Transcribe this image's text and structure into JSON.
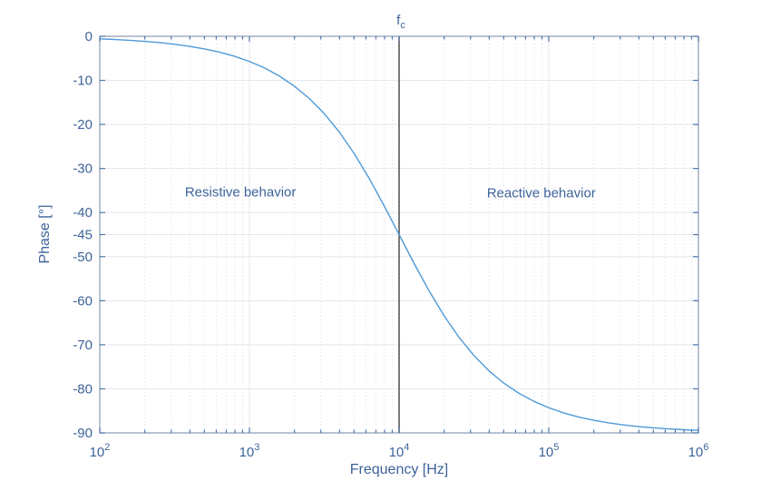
{
  "chart_data": {
    "type": "line",
    "title": "",
    "xlabel": "Frequency [Hz]",
    "ylabel": "Phase [°]",
    "x_scale": "log",
    "x_range_log10": [
      2,
      6
    ],
    "ylim": [
      -90,
      0
    ],
    "x_tick_exponents": [
      2,
      3,
      4,
      5,
      6
    ],
    "x_tick_base": "10",
    "y_ticks": [
      0,
      -10,
      -20,
      -30,
      -40,
      -45,
      -50,
      -60,
      -70,
      -80,
      -90
    ],
    "grid": {
      "major": true,
      "x_minor_dotted": true,
      "legend": "none"
    },
    "series": [
      {
        "name": "phase-response",
        "color": "#4f9ad7",
        "points_log10f_deg": [
          [
            2.0,
            -0.57
          ],
          [
            2.1,
            -0.72
          ],
          [
            2.2,
            -0.91
          ],
          [
            2.3,
            -1.14
          ],
          [
            2.4,
            -1.44
          ],
          [
            2.5,
            -1.81
          ],
          [
            2.6,
            -2.28
          ],
          [
            2.7,
            -2.86
          ],
          [
            2.8,
            -3.6
          ],
          [
            2.9,
            -4.52
          ],
          [
            3.0,
            -5.71
          ],
          [
            3.1,
            -7.16
          ],
          [
            3.2,
            -9.01
          ],
          [
            3.3,
            -11.31
          ],
          [
            3.4,
            -14.11
          ],
          [
            3.5,
            -17.55
          ],
          [
            3.6,
            -21.7
          ],
          [
            3.7,
            -26.62
          ],
          [
            3.8,
            -32.25
          ],
          [
            3.9,
            -38.46
          ],
          [
            4.0,
            -45.0
          ],
          [
            4.1,
            -51.54
          ],
          [
            4.2,
            -57.75
          ],
          [
            4.3,
            -63.38
          ],
          [
            4.4,
            -68.3
          ],
          [
            4.5,
            -72.45
          ],
          [
            4.6,
            -75.9
          ],
          [
            4.7,
            -78.72
          ],
          [
            4.8,
            -80.99
          ],
          [
            4.9,
            -82.83
          ],
          [
            5.0,
            -84.29
          ],
          [
            5.1,
            -85.48
          ],
          [
            5.2,
            -86.4
          ],
          [
            5.3,
            -87.14
          ],
          [
            5.4,
            -87.72
          ],
          [
            5.5,
            -88.19
          ],
          [
            5.6,
            -88.56
          ],
          [
            5.7,
            -88.86
          ],
          [
            5.8,
            -89.09
          ],
          [
            5.9,
            -89.28
          ],
          [
            6.0,
            -89.43
          ]
        ]
      }
    ],
    "cutoff": {
      "label_base": "f",
      "label_sub": "c",
      "log10f": 4,
      "line_color": "#4b4b4b"
    },
    "annotations": [
      {
        "id": "resistive",
        "text": "Resistive behavior",
        "log10f": 2.94,
        "phase": -35.5
      },
      {
        "id": "reactive",
        "text": "Reactive behavior",
        "log10f": 4.95,
        "phase": -35.6
      }
    ],
    "colors": {
      "axis": "#8a99b3",
      "tick": "#4d74a8",
      "text": "#3d6399",
      "grid_major": "#e4e7ed",
      "grid_minor": "#d9dee6",
      "background": "#ffffff"
    }
  }
}
